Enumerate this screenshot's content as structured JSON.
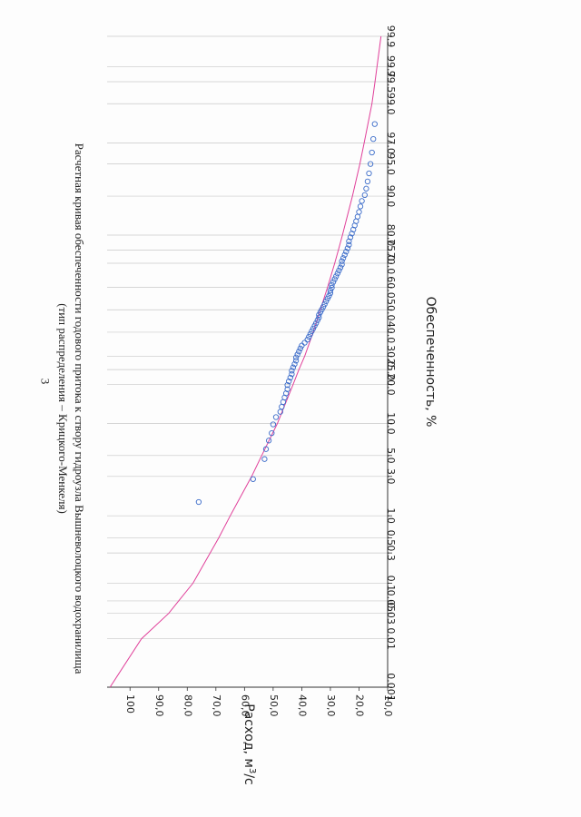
{
  "page_number": "3",
  "title_line1": "Расчетная кривая обеспеченности годового притока к створу гидроузла Вышневолоцкого водохранилища",
  "title_line2": "(тип распределения – Крицкого-Менкеля)",
  "chart_data": {
    "type": "scatter",
    "xlabel": "Обеспеченность, %",
    "ylabel": "Расход, м³/с",
    "ylabel_unit_base": "Расход, м",
    "ylabel_unit_exp": "3",
    "ylabel_unit_tail": "/с",
    "x_scale": "probability",
    "xlim": [
      0.001,
      99.9
    ],
    "ylim": [
      10,
      108
    ],
    "grid": true,
    "x_ticks": [
      "0.001",
      "0.01",
      "0.03",
      "0.05",
      "0.1",
      "0.3",
      "0.5",
      "1.0",
      "3.0",
      "5.0",
      "10.0",
      "20.0",
      "25.0",
      "30.0",
      "40.0",
      "50.0",
      "60.0",
      "70.0",
      "75.0",
      "80.0",
      "90.0",
      "95.0",
      "97.0",
      "99.0",
      "99.5",
      "99.7",
      "99.9"
    ],
    "y_ticks": [
      "10,0",
      "20,0",
      "30,0",
      "40,0",
      "50,0",
      "60,0",
      "70,0",
      "80,0",
      "90,0",
      "100"
    ],
    "y_tick_values": [
      10,
      20,
      30,
      40,
      50,
      60,
      70,
      80,
      90,
      100
    ],
    "points_color": "#3a6bc9",
    "curve_color": "#e0409a",
    "observed": {
      "x": [
        1.5,
        2.8,
        4.6,
        5.8,
        7.0,
        8.2,
        9.8,
        11.3,
        12.5,
        13.7,
        14.9,
        16.1,
        17.3,
        18.5,
        19.8,
        21.0,
        22.2,
        23.4,
        24.6,
        25.8,
        27.0,
        28.3,
        29.5,
        30.7,
        31.9,
        33.1,
        34.3,
        35.5,
        36.8,
        38.0,
        39.2,
        40.4,
        41.6,
        42.8,
        44.0,
        45.3,
        46.5,
        47.7,
        48.9,
        50.1,
        51.3,
        52.5,
        53.8,
        55.0,
        56.2,
        57.4,
        58.6,
        59.8,
        61.0,
        62.3,
        63.5,
        64.7,
        65.9,
        67.1,
        68.3,
        69.5,
        70.8,
        72.0,
        73.2,
        74.4,
        75.6,
        76.8,
        78.0,
        79.3,
        80.5,
        81.7,
        82.9,
        84.1,
        85.3,
        86.5,
        87.8,
        89.0,
        90.2,
        91.4,
        92.6,
        93.8,
        95.0,
        96.2,
        97.3,
        98.2
      ],
      "y": [
        76.0,
        57.0,
        53.0,
        52.5,
        51.5,
        50.5,
        50.0,
        49.0,
        47.5,
        47.0,
        46.5,
        46.0,
        45.5,
        45.0,
        45.0,
        44.5,
        44.0,
        43.5,
        43.5,
        43.0,
        42.5,
        42.0,
        42.0,
        41.5,
        41.0,
        40.5,
        40.0,
        39.0,
        38.0,
        37.5,
        37.0,
        36.5,
        36.0,
        35.5,
        35.0,
        34.5,
        34.0,
        34.0,
        33.5,
        33.0,
        32.5,
        32.0,
        31.5,
        31.0,
        30.5,
        30.0,
        30.0,
        29.5,
        29.5,
        29.0,
        28.5,
        28.0,
        27.5,
        27.0,
        26.5,
        26.0,
        26.0,
        25.5,
        25.0,
        24.5,
        24.0,
        23.5,
        23.5,
        23.0,
        22.5,
        22.0,
        21.5,
        21.0,
        20.5,
        20.0,
        19.5,
        19.0,
        18.0,
        17.5,
        17.0,
        16.5,
        16.0,
        15.5,
        15.0,
        14.5
      ]
    },
    "curve": {
      "x": [
        0.001,
        0.01,
        0.03,
        0.05,
        0.1,
        0.3,
        0.5,
        1.0,
        3.0,
        5.0,
        10.0,
        20.0,
        25.0,
        30.0,
        40.0,
        50.0,
        60.0,
        70.0,
        75.0,
        80.0,
        90.0,
        95.0,
        97.0,
        99.0,
        99.5,
        99.7,
        99.9
      ],
      "y": [
        107,
        96,
        86.5,
        83,
        78,
        72,
        69,
        65,
        57.5,
        54,
        48.5,
        43,
        41,
        39,
        36,
        33.5,
        31,
        28.5,
        27.2,
        25.8,
        22.3,
        19.7,
        18.2,
        15.5,
        14.4,
        13.7,
        12.3
      ]
    }
  }
}
